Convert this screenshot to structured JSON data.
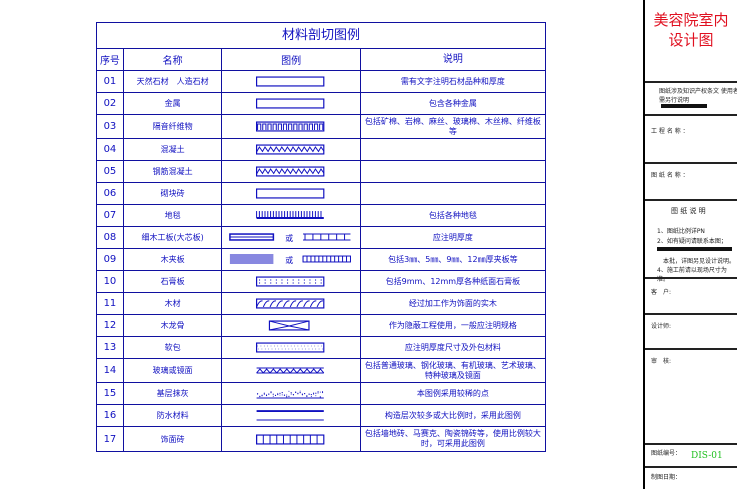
{
  "table": {
    "title": "材料剖切图例",
    "headers": [
      "序号",
      "名称",
      "图例",
      "说明"
    ],
    "rows": [
      {
        "no": "01",
        "name": "天然石材　人造石材",
        "legend": "empty-rect",
        "desc": "需有文字注明石材品种和厚度"
      },
      {
        "no": "02",
        "name": "金属",
        "legend": "empty-rect",
        "desc": "包含各种金属"
      },
      {
        "no": "03",
        "name": "隔音纤维物",
        "legend": "wave-rect",
        "desc": "包括矿棉、岩棉、麻丝、玻璃棉、木丝棉、纤维板等"
      },
      {
        "no": "04",
        "name": "混凝土",
        "legend": "concrete",
        "desc": ""
      },
      {
        "no": "05",
        "name": "钢筋混凝土",
        "legend": "concrete",
        "desc": ""
      },
      {
        "no": "06",
        "name": "砌块砖",
        "legend": "empty-rect",
        "desc": ""
      },
      {
        "no": "07",
        "name": "地毯",
        "legend": "carpet",
        "desc": "包括各种地毯"
      },
      {
        "no": "08",
        "name": "细木工板(大芯板)",
        "legend": "blockboard",
        "desc": "应注明厚度"
      },
      {
        "no": "09",
        "name": "木夹板",
        "legend": "plywood",
        "desc": "包括3㎜、5㎜、9㎜、12㎜厚夹板等"
      },
      {
        "no": "10",
        "name": "石膏板",
        "legend": "dotted-rect",
        "desc": "包括9mm、12mm厚各种纸面石膏板"
      },
      {
        "no": "11",
        "name": "木材",
        "legend": "wood",
        "desc": "经过加工作为饰面的实木"
      },
      {
        "no": "12",
        "name": "木龙骨",
        "legend": "cross-rect",
        "desc": "作为隐蔽工程使用，一般应注明规格"
      },
      {
        "no": "13",
        "name": "软包",
        "legend": "fine-dot-rect",
        "desc": "应注明厚度尺寸及外包材料"
      },
      {
        "no": "14",
        "name": "玻璃或镜面",
        "legend": "glass",
        "desc": "包括普通玻璃、钢化玻璃、有机玻璃、艺术玻璃、特种玻璃及镜面"
      },
      {
        "no": "15",
        "name": "基层抹灰",
        "legend": "plaster",
        "desc": "本图例采用较稀的点"
      },
      {
        "no": "16",
        "name": "防水材料",
        "legend": "waterproof",
        "desc": "构造层次较多或大比例时，采用此图例"
      },
      {
        "no": "17",
        "name": "饰面砖",
        "legend": "tile",
        "desc": "包括墙地砖、马赛克、陶瓷锦砖等，使用比例较大时，可采用此图例"
      }
    ],
    "or_mark": "或"
  },
  "side": {
    "title_line1": "美容院室内",
    "title_line2": "设计图",
    "notice": "图纸涉及知识产权条文 使用者需另行说明",
    "project_name": "工 程 名 称 ：",
    "drawing_name": "图 纸 名 称 ：",
    "notes_title": "图 纸 说 明",
    "note1": "1、图纸比例详PN",
    "note2": "2、如有疑问请联系本图；",
    "note3": "本批，详图另见设计说明。",
    "note4": "4、施工前请以现场尺寸为准。",
    "client": "客　户:",
    "designer": "设计师:",
    "reviewer": "审　核:",
    "drawing_no_label": "图纸编号：",
    "drawing_no": "DIS-01",
    "date_label": "制图日期：",
    "colors": {
      "title": "#e01020",
      "drawing_no": "#20c020",
      "lines": "#1010c0"
    }
  }
}
